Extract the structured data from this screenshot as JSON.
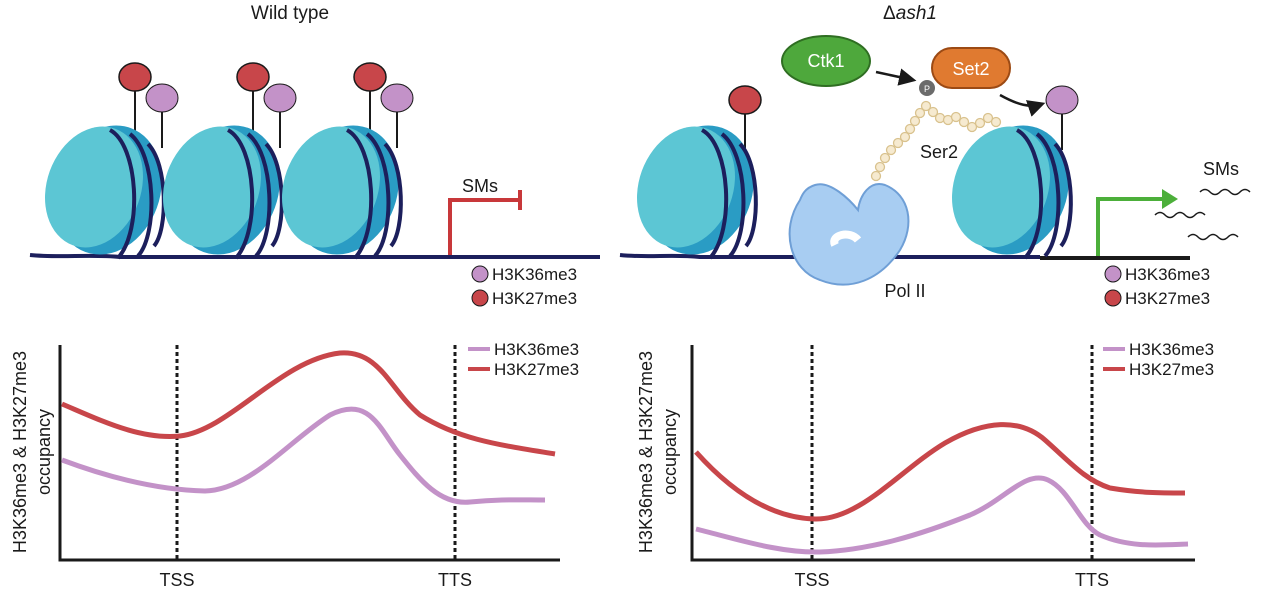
{
  "left_panel": {
    "title": "Wild type",
    "sms_label": "SMs",
    "legend": [
      {
        "label": "H3K36me3",
        "color": "#c392c8"
      },
      {
        "label": "H3K27me3",
        "color": "#c8464a"
      }
    ],
    "plot": {
      "ylabel_line1": "H3K36me3 & H3K27me3",
      "ylabel_line2": "occupancy",
      "tss_label": "TSS",
      "tts_label": "TTS",
      "legend": [
        {
          "label": "H3K36me3",
          "color": "#c392c8"
        },
        {
          "label": "H3K27me3",
          "color": "#c8464a"
        }
      ]
    }
  },
  "right_panel": {
    "title_prefix": "Δ",
    "title_italic": "ash1",
    "ctk1_label": "Ctk1",
    "set2_label": "Set2",
    "p_label": "P",
    "ser2_label": "Ser2",
    "pol2_label": "Pol II",
    "sms_label": "SMs",
    "legend": [
      {
        "label": "H3K36me3",
        "color": "#c392c8"
      },
      {
        "label": "H3K27me3",
        "color": "#c8464a"
      }
    ],
    "plot": {
      "ylabel_line1": "H3K36me3 & H3K27me3",
      "ylabel_line2": "occupancy",
      "tss_label": "TSS",
      "tts_label": "TTS",
      "legend": [
        {
          "label": "H3K36me3",
          "color": "#c392c8"
        },
        {
          "label": "H3K27me3",
          "color": "#c8464a"
        }
      ]
    }
  },
  "colors": {
    "nucleosome_light": "#5cc6d4",
    "nucleosome_dark": "#2a9cc4",
    "dna": "#1c1f5c",
    "k27": "#c8464a",
    "k36": "#c392c8",
    "ctk1": "#4ea83c",
    "set2": "#e07a30",
    "pol2": "#a8cdf2",
    "active_gene": "#4caf3a",
    "repressed_gene": "#c8383a"
  }
}
